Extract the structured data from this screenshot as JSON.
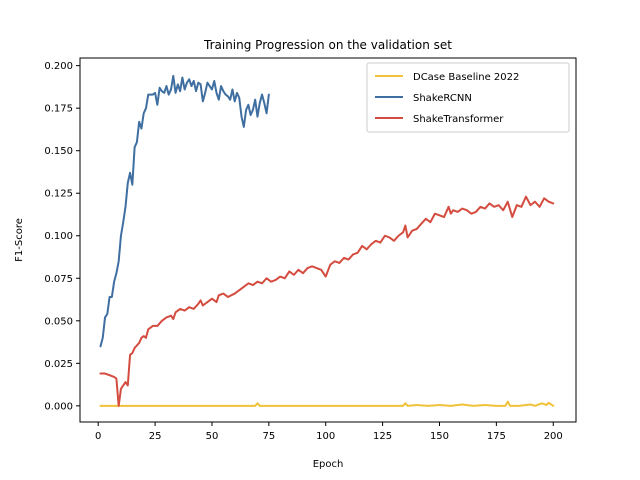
{
  "chart_data": {
    "type": "line",
    "title": "Training Progression on the validation set",
    "xlabel": "Epoch",
    "ylabel": "F1-Score",
    "xlim": [
      -8,
      210
    ],
    "ylim": [
      -0.0095,
      0.2045
    ],
    "x_ticks": [
      0,
      25,
      50,
      75,
      100,
      125,
      150,
      175,
      200
    ],
    "y_ticks": [
      0.0,
      0.025,
      0.05,
      0.075,
      0.1,
      0.125,
      0.15,
      0.175,
      0.2
    ],
    "x_tick_labels": [
      "0",
      "25",
      "50",
      "75",
      "100",
      "125",
      "150",
      "175",
      "200"
    ],
    "y_tick_labels": [
      "0.000",
      "0.025",
      "0.050",
      "0.075",
      "0.100",
      "0.125",
      "0.150",
      "0.175",
      "0.200"
    ],
    "grid": false,
    "legend_position": "top-right",
    "series": [
      {
        "name": "DCase Baseline 2022",
        "color": "#f0c23a",
        "points": [
          [
            1,
            0.0
          ],
          [
            20,
            0.0
          ],
          [
            40,
            0.0
          ],
          [
            60,
            0.0
          ],
          [
            69,
            0.0
          ],
          [
            70,
            0.0015
          ],
          [
            71,
            0.0
          ],
          [
            90,
            0.0
          ],
          [
            110,
            0.0
          ],
          [
            130,
            0.0
          ],
          [
            134,
            0.0
          ],
          [
            135,
            0.0015
          ],
          [
            136,
            0.0
          ],
          [
            140,
            0.0005
          ],
          [
            145,
            0.0
          ],
          [
            150,
            0.0005
          ],
          [
            155,
            0.0
          ],
          [
            160,
            0.0008
          ],
          [
            165,
            0.0
          ],
          [
            170,
            0.0005
          ],
          [
            175,
            0.0
          ],
          [
            179,
            0.0
          ],
          [
            180,
            0.0025
          ],
          [
            181,
            0.0
          ],
          [
            185,
            0.0
          ],
          [
            190,
            0.0008
          ],
          [
            192,
            0.0
          ],
          [
            195,
            0.0015
          ],
          [
            197,
            0.0005
          ],
          [
            198,
            0.0018
          ],
          [
            200,
            0.0
          ]
        ]
      },
      {
        "name": "ShakeRCNN",
        "color": "#3f6fa1",
        "points": [
          [
            1,
            0.035
          ],
          [
            2,
            0.04
          ],
          [
            3,
            0.052
          ],
          [
            4,
            0.054
          ],
          [
            5,
            0.064
          ],
          [
            6,
            0.064
          ],
          [
            7,
            0.073
          ],
          [
            8,
            0.078
          ],
          [
            9,
            0.085
          ],
          [
            10,
            0.1
          ],
          [
            11,
            0.108
          ],
          [
            12,
            0.117
          ],
          [
            13,
            0.131
          ],
          [
            14,
            0.137
          ],
          [
            15,
            0.13
          ],
          [
            16,
            0.152
          ],
          [
            17,
            0.155
          ],
          [
            18,
            0.167
          ],
          [
            19,
            0.163
          ],
          [
            20,
            0.172
          ],
          [
            21,
            0.175
          ],
          [
            22,
            0.183
          ],
          [
            23,
            0.183
          ],
          [
            24,
            0.183
          ],
          [
            25,
            0.184
          ],
          [
            26,
            0.177
          ],
          [
            27,
            0.187
          ],
          [
            28,
            0.185
          ],
          [
            29,
            0.184
          ],
          [
            30,
            0.188
          ],
          [
            31,
            0.183
          ],
          [
            32,
            0.186
          ],
          [
            33,
            0.194
          ],
          [
            34,
            0.184
          ],
          [
            35,
            0.189
          ],
          [
            36,
            0.185
          ],
          [
            37,
            0.193
          ],
          [
            38,
            0.186
          ],
          [
            39,
            0.19
          ],
          [
            40,
            0.192
          ],
          [
            41,
            0.188
          ],
          [
            42,
            0.191
          ],
          [
            43,
            0.185
          ],
          [
            44,
            0.19
          ],
          [
            45,
            0.189
          ],
          [
            46,
            0.179
          ],
          [
            47,
            0.184
          ],
          [
            48,
            0.19
          ],
          [
            49,
            0.188
          ],
          [
            50,
            0.186
          ],
          [
            51,
            0.191
          ],
          [
            52,
            0.184
          ],
          [
            53,
            0.18
          ],
          [
            54,
            0.188
          ],
          [
            55,
            0.185
          ],
          [
            56,
            0.183
          ],
          [
            57,
            0.182
          ],
          [
            58,
            0.18
          ],
          [
            59,
            0.186
          ],
          [
            60,
            0.179
          ],
          [
            61,
            0.184
          ],
          [
            62,
            0.181
          ],
          [
            63,
            0.17
          ],
          [
            64,
            0.164
          ],
          [
            65,
            0.174
          ],
          [
            66,
            0.177
          ],
          [
            67,
            0.171
          ],
          [
            68,
            0.174
          ],
          [
            69,
            0.18
          ],
          [
            70,
            0.17
          ],
          [
            71,
            0.178
          ],
          [
            72,
            0.183
          ],
          [
            73,
            0.178
          ],
          [
            74,
            0.172
          ],
          [
            75,
            0.183
          ]
        ]
      },
      {
        "name": "ShakeTransformer",
        "color": "#d44c3f",
        "points": [
          [
            1,
            0.019
          ],
          [
            3,
            0.019
          ],
          [
            5,
            0.018
          ],
          [
            7,
            0.017
          ],
          [
            8,
            0.016
          ],
          [
            9,
            0.0
          ],
          [
            10,
            0.01
          ],
          [
            11,
            0.012
          ],
          [
            12,
            0.014
          ],
          [
            13,
            0.012
          ],
          [
            14,
            0.03
          ],
          [
            15,
            0.031
          ],
          [
            16,
            0.034
          ],
          [
            18,
            0.037
          ],
          [
            19,
            0.04
          ],
          [
            20,
            0.041
          ],
          [
            21,
            0.04
          ],
          [
            22,
            0.045
          ],
          [
            24,
            0.047
          ],
          [
            26,
            0.047
          ],
          [
            28,
            0.05
          ],
          [
            30,
            0.052
          ],
          [
            32,
            0.053
          ],
          [
            33,
            0.051
          ],
          [
            34,
            0.055
          ],
          [
            36,
            0.057
          ],
          [
            38,
            0.056
          ],
          [
            40,
            0.058
          ],
          [
            42,
            0.057
          ],
          [
            44,
            0.06
          ],
          [
            45,
            0.062
          ],
          [
            46,
            0.059
          ],
          [
            48,
            0.061
          ],
          [
            50,
            0.063
          ],
          [
            52,
            0.061
          ],
          [
            53,
            0.065
          ],
          [
            55,
            0.066
          ],
          [
            57,
            0.064
          ],
          [
            60,
            0.066
          ],
          [
            62,
            0.068
          ],
          [
            64,
            0.07
          ],
          [
            66,
            0.072
          ],
          [
            68,
            0.071
          ],
          [
            70,
            0.073
          ],
          [
            72,
            0.072
          ],
          [
            74,
            0.075
          ],
          [
            76,
            0.073
          ],
          [
            78,
            0.074
          ],
          [
            80,
            0.076
          ],
          [
            82,
            0.075
          ],
          [
            84,
            0.079
          ],
          [
            86,
            0.077
          ],
          [
            88,
            0.08
          ],
          [
            90,
            0.078
          ],
          [
            92,
            0.081
          ],
          [
            94,
            0.082
          ],
          [
            96,
            0.081
          ],
          [
            98,
            0.08
          ],
          [
            100,
            0.076
          ],
          [
            102,
            0.083
          ],
          [
            104,
            0.085
          ],
          [
            106,
            0.084
          ],
          [
            108,
            0.087
          ],
          [
            110,
            0.086
          ],
          [
            112,
            0.089
          ],
          [
            114,
            0.09
          ],
          [
            116,
            0.094
          ],
          [
            118,
            0.092
          ],
          [
            120,
            0.095
          ],
          [
            122,
            0.097
          ],
          [
            124,
            0.096
          ],
          [
            126,
            0.1
          ],
          [
            128,
            0.099
          ],
          [
            130,
            0.097
          ],
          [
            132,
            0.1
          ],
          [
            134,
            0.102
          ],
          [
            135,
            0.106
          ],
          [
            136,
            0.099
          ],
          [
            138,
            0.103
          ],
          [
            140,
            0.104
          ],
          [
            142,
            0.107
          ],
          [
            144,
            0.11
          ],
          [
            146,
            0.108
          ],
          [
            148,
            0.113
          ],
          [
            150,
            0.112
          ],
          [
            152,
            0.111
          ],
          [
            154,
            0.117
          ],
          [
            155,
            0.113
          ],
          [
            156,
            0.115
          ],
          [
            158,
            0.114
          ],
          [
            160,
            0.116
          ],
          [
            162,
            0.115
          ],
          [
            164,
            0.113
          ],
          [
            166,
            0.114
          ],
          [
            168,
            0.117
          ],
          [
            170,
            0.116
          ],
          [
            172,
            0.119
          ],
          [
            174,
            0.117
          ],
          [
            176,
            0.118
          ],
          [
            178,
            0.115
          ],
          [
            180,
            0.12
          ],
          [
            182,
            0.111
          ],
          [
            184,
            0.118
          ],
          [
            186,
            0.117
          ],
          [
            188,
            0.123
          ],
          [
            190,
            0.118
          ],
          [
            192,
            0.12
          ],
          [
            194,
            0.117
          ],
          [
            196,
            0.122
          ],
          [
            198,
            0.12
          ],
          [
            200,
            0.119
          ]
        ]
      }
    ]
  }
}
